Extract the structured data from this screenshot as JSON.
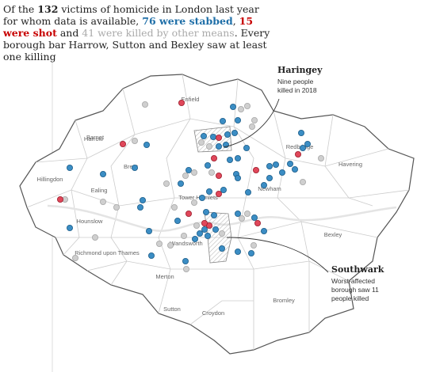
{
  "intro": {
    "segments": [
      "Of the ",
      "132",
      " victims of homicide in London last year for whom data is available, ",
      "76 were stabbed",
      ", ",
      "15 were shot",
      " and ",
      "41 were killed by other means",
      ". Every borough bar Harrow, Sutton and Bexley saw at least one killing"
    ]
  },
  "boroughs": [
    "Enfield",
    "Barnet",
    "Harrow",
    "Redbridge",
    "Havering",
    "Brent",
    "Hillingdon",
    "Ealing",
    "Tower Hamlets",
    "Newham",
    "Hounslow",
    "Richmond upon Thames",
    "Wandsworth",
    "Bexley",
    "Merton",
    "Bromley",
    "Sutton",
    "Croydon"
  ],
  "callouts": [
    {
      "title": "Haringey",
      "text": "Nine people killed in 2018"
    },
    {
      "title": "Southwark",
      "text": "Worst-affected borough saw 11 people killed"
    }
  ]
}
